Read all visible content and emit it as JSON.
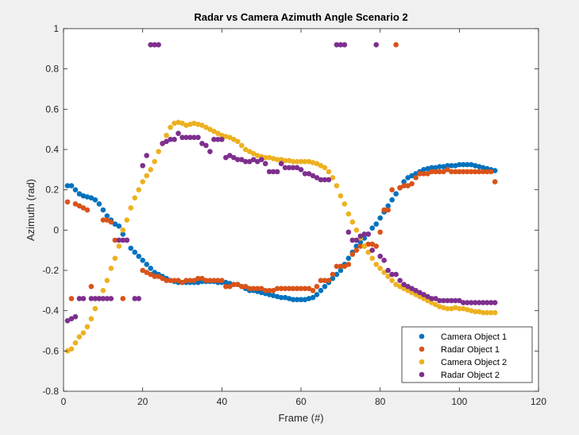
{
  "chart_data": {
    "type": "scatter",
    "title": "Radar vs Camera Azimuth Angle Scenario 2",
    "xlabel": "Frame (#)",
    "ylabel": "Azimuth (rad)",
    "xlim": [
      0,
      120
    ],
    "ylim": [
      -0.8,
      1.0
    ],
    "xticks": [
      0,
      20,
      40,
      60,
      80,
      100,
      120
    ],
    "yticks": [
      -0.8,
      -0.6,
      -0.4,
      -0.2,
      0,
      0.2,
      0.4,
      0.6,
      0.8,
      1.0
    ],
    "xtick_labels": [
      "0",
      "20",
      "40",
      "60",
      "80",
      "100",
      "120"
    ],
    "ytick_labels": [
      "-0.8",
      "-0.6",
      "-0.4",
      "-0.2",
      "0",
      "0.2",
      "0.4",
      "0.6",
      "0.8",
      "1"
    ],
    "grid": false,
    "legend": {
      "position": "bottom-right"
    },
    "series": [
      {
        "name": "Camera Object 1",
        "color": "#0072BD",
        "x": [
          1,
          2,
          3,
          4,
          5,
          6,
          7,
          8,
          9,
          10,
          11,
          12,
          13,
          14,
          15,
          16,
          17,
          18,
          19,
          20,
          21,
          22,
          23,
          24,
          25,
          26,
          27,
          28,
          29,
          30,
          31,
          32,
          33,
          34,
          35,
          36,
          37,
          38,
          39,
          40,
          41,
          42,
          43,
          44,
          45,
          46,
          47,
          48,
          49,
          50,
          51,
          52,
          53,
          54,
          55,
          56,
          57,
          58,
          59,
          60,
          61,
          62,
          63,
          64,
          65,
          66,
          67,
          68,
          69,
          70,
          71,
          72,
          73,
          74,
          75,
          76,
          77,
          78,
          79,
          80,
          81,
          82,
          83,
          84,
          85,
          86,
          87,
          88,
          89,
          90,
          91,
          92,
          93,
          94,
          95,
          96,
          97,
          98,
          99,
          100,
          101,
          102,
          103,
          104,
          105,
          106,
          107,
          108,
          109
        ],
        "y": [
          0.22,
          0.22,
          0.2,
          0.18,
          0.17,
          0.165,
          0.16,
          0.15,
          0.13,
          0.1,
          0.07,
          0.05,
          0.03,
          0.02,
          -0.02,
          -0.05,
          -0.09,
          -0.11,
          -0.13,
          -0.15,
          -0.17,
          -0.19,
          -0.21,
          -0.22,
          -0.23,
          -0.24,
          -0.25,
          -0.255,
          -0.26,
          -0.26,
          -0.26,
          -0.26,
          -0.26,
          -0.26,
          -0.255,
          -0.255,
          -0.255,
          -0.255,
          -0.26,
          -0.26,
          -0.26,
          -0.265,
          -0.27,
          -0.27,
          -0.28,
          -0.29,
          -0.3,
          -0.3,
          -0.305,
          -0.31,
          -0.315,
          -0.32,
          -0.325,
          -0.33,
          -0.335,
          -0.335,
          -0.34,
          -0.345,
          -0.345,
          -0.345,
          -0.345,
          -0.34,
          -0.335,
          -0.32,
          -0.3,
          -0.28,
          -0.26,
          -0.24,
          -0.22,
          -0.2,
          -0.17,
          -0.14,
          -0.11,
          -0.08,
          -0.06,
          -0.04,
          -0.02,
          0.01,
          0.03,
          0.06,
          0.09,
          0.12,
          0.15,
          0.18,
          0.21,
          0.24,
          0.26,
          0.27,
          0.28,
          0.29,
          0.3,
          0.305,
          0.31,
          0.31,
          0.315,
          0.315,
          0.32,
          0.32,
          0.32,
          0.325,
          0.325,
          0.325,
          0.325,
          0.32,
          0.315,
          0.31,
          0.305,
          0.3,
          0.295
        ]
      },
      {
        "name": "Radar Object 1",
        "color": "#D95319",
        "x": [
          1,
          2,
          3,
          4,
          5,
          6,
          7,
          10,
          11,
          12,
          13,
          15,
          20,
          21,
          22,
          23,
          24,
          25,
          26,
          27,
          28,
          29,
          30,
          31,
          32,
          33,
          34,
          35,
          36,
          37,
          38,
          39,
          40,
          41,
          42,
          43,
          44,
          45,
          46,
          47,
          48,
          49,
          50,
          51,
          52,
          53,
          54,
          55,
          56,
          57,
          58,
          59,
          60,
          61,
          62,
          63,
          64,
          65,
          66,
          67,
          68,
          69,
          70,
          71,
          72,
          73,
          74,
          75,
          76,
          77,
          78,
          79,
          80,
          81,
          82,
          83,
          84,
          85,
          86,
          87,
          88,
          89,
          90,
          91,
          92,
          93,
          94,
          95,
          96,
          97,
          98,
          99,
          100,
          101,
          102,
          103,
          104,
          105,
          106,
          107,
          108,
          109
        ],
        "y": [
          0.14,
          -0.34,
          0.13,
          0.12,
          0.11,
          0.1,
          -0.28,
          0.05,
          0.05,
          0.04,
          -0.05,
          -0.34,
          -0.2,
          -0.21,
          -0.22,
          -0.23,
          -0.23,
          -0.24,
          -0.25,
          -0.25,
          -0.25,
          -0.25,
          -0.26,
          -0.25,
          -0.25,
          -0.25,
          -0.24,
          -0.24,
          -0.25,
          -0.25,
          -0.25,
          -0.25,
          -0.25,
          -0.28,
          -0.28,
          -0.27,
          -0.27,
          -0.28,
          -0.28,
          -0.29,
          -0.29,
          -0.29,
          -0.29,
          -0.3,
          -0.3,
          -0.3,
          -0.29,
          -0.29,
          -0.29,
          -0.29,
          -0.29,
          -0.29,
          -0.29,
          -0.29,
          -0.29,
          -0.3,
          -0.28,
          -0.25,
          -0.25,
          -0.25,
          -0.22,
          -0.18,
          -0.18,
          -0.18,
          -0.17,
          -0.12,
          -0.1,
          -0.08,
          -0.08,
          -0.07,
          -0.07,
          -0.08,
          -0.01,
          0.1,
          0.1,
          0.2,
          0.92,
          0.21,
          0.22,
          0.22,
          0.23,
          0.26,
          0.28,
          0.28,
          0.28,
          0.29,
          0.29,
          0.29,
          0.29,
          0.3,
          0.29,
          0.29,
          0.29,
          0.29,
          0.29,
          0.29,
          0.29,
          0.29,
          0.29,
          0.29,
          0.29,
          0.24
        ]
      },
      {
        "name": "Camera Object 2",
        "color": "#EDB120",
        "x": [
          1,
          2,
          3,
          4,
          5,
          6,
          7,
          8,
          9,
          10,
          11,
          12,
          13,
          14,
          15,
          16,
          17,
          18,
          19,
          20,
          21,
          22,
          23,
          24,
          25,
          26,
          27,
          28,
          29,
          30,
          31,
          32,
          33,
          34,
          35,
          36,
          37,
          38,
          39,
          40,
          41,
          42,
          43,
          44,
          45,
          46,
          47,
          48,
          49,
          50,
          51,
          52,
          53,
          54,
          55,
          56,
          57,
          58,
          59,
          60,
          61,
          62,
          63,
          64,
          65,
          66,
          67,
          68,
          69,
          70,
          71,
          72,
          73,
          74,
          75,
          76,
          77,
          78,
          79,
          80,
          81,
          82,
          83,
          84,
          85,
          86,
          87,
          88,
          89,
          90,
          91,
          92,
          93,
          94,
          95,
          96,
          97,
          98,
          99,
          100,
          101,
          102,
          103,
          104,
          105,
          106,
          107,
          108,
          109
        ],
        "y": [
          -0.6,
          -0.59,
          -0.56,
          -0.53,
          -0.51,
          -0.48,
          -0.44,
          -0.39,
          -0.34,
          -0.3,
          -0.25,
          -0.19,
          -0.14,
          -0.08,
          0.0,
          0.05,
          0.11,
          0.16,
          0.2,
          0.24,
          0.27,
          0.3,
          0.34,
          0.39,
          0.43,
          0.47,
          0.51,
          0.53,
          0.535,
          0.53,
          0.52,
          0.525,
          0.53,
          0.525,
          0.52,
          0.51,
          0.5,
          0.49,
          0.48,
          0.47,
          0.465,
          0.46,
          0.45,
          0.44,
          0.42,
          0.4,
          0.39,
          0.38,
          0.37,
          0.365,
          0.36,
          0.36,
          0.355,
          0.35,
          0.35,
          0.345,
          0.345,
          0.34,
          0.34,
          0.34,
          0.34,
          0.34,
          0.335,
          0.33,
          0.32,
          0.31,
          0.29,
          0.26,
          0.22,
          0.17,
          0.13,
          0.08,
          0.04,
          0.0,
          -0.04,
          -0.08,
          -0.11,
          -0.14,
          -0.17,
          -0.19,
          -0.21,
          -0.23,
          -0.25,
          -0.27,
          -0.28,
          -0.29,
          -0.3,
          -0.31,
          -0.32,
          -0.33,
          -0.34,
          -0.35,
          -0.36,
          -0.37,
          -0.38,
          -0.385,
          -0.39,
          -0.39,
          -0.385,
          -0.39,
          -0.39,
          -0.395,
          -0.4,
          -0.405,
          -0.405,
          -0.41,
          -0.41,
          -0.41,
          -0.41
        ]
      },
      {
        "name": "Radar Object 2",
        "color": "#7E2F8E",
        "x": [
          1,
          2,
          3,
          4,
          5,
          7,
          8,
          9,
          10,
          11,
          12,
          14,
          15,
          16,
          18,
          19,
          20,
          21,
          22,
          23,
          24,
          25,
          26,
          27,
          28,
          29,
          30,
          31,
          32,
          33,
          34,
          35,
          36,
          37,
          38,
          39,
          40,
          41,
          42,
          43,
          44,
          45,
          46,
          47,
          48,
          49,
          50,
          51,
          52,
          53,
          54,
          55,
          56,
          57,
          58,
          59,
          60,
          61,
          62,
          63,
          64,
          65,
          66,
          67,
          69,
          70,
          71,
          72,
          73,
          74,
          75,
          76,
          77,
          78,
          79,
          80,
          81,
          82,
          83,
          84,
          85,
          86,
          87,
          88,
          89,
          90,
          91,
          92,
          93,
          94,
          95,
          96,
          97,
          98,
          99,
          100,
          101,
          102,
          103,
          104,
          105,
          106,
          107,
          108,
          109
        ],
        "y": [
          -0.45,
          -0.44,
          -0.43,
          -0.34,
          -0.34,
          -0.34,
          -0.34,
          -0.34,
          -0.34,
          -0.34,
          -0.34,
          -0.05,
          -0.05,
          -0.05,
          -0.34,
          -0.34,
          0.32,
          0.37,
          0.92,
          0.92,
          0.92,
          0.43,
          0.44,
          0.45,
          0.45,
          0.48,
          0.46,
          0.46,
          0.46,
          0.46,
          0.46,
          0.43,
          0.42,
          0.39,
          0.45,
          0.45,
          0.45,
          0.36,
          0.37,
          0.36,
          0.35,
          0.35,
          0.34,
          0.34,
          0.35,
          0.34,
          0.35,
          0.33,
          0.29,
          0.29,
          0.29,
          0.33,
          0.31,
          0.31,
          0.31,
          0.31,
          0.3,
          0.28,
          0.28,
          0.27,
          0.26,
          0.25,
          0.25,
          0.25,
          0.92,
          0.92,
          0.92,
          -0.01,
          -0.05,
          -0.05,
          -0.03,
          -0.02,
          -0.02,
          -0.1,
          0.92,
          -0.13,
          -0.15,
          -0.2,
          -0.22,
          -0.22,
          -0.25,
          -0.27,
          -0.28,
          -0.29,
          -0.3,
          -0.31,
          -0.32,
          -0.33,
          -0.34,
          -0.34,
          -0.35,
          -0.35,
          -0.35,
          -0.35,
          -0.35,
          -0.35,
          -0.36,
          -0.36,
          -0.36,
          -0.36,
          -0.36,
          -0.36,
          -0.36,
          -0.36,
          -0.36
        ]
      }
    ]
  }
}
